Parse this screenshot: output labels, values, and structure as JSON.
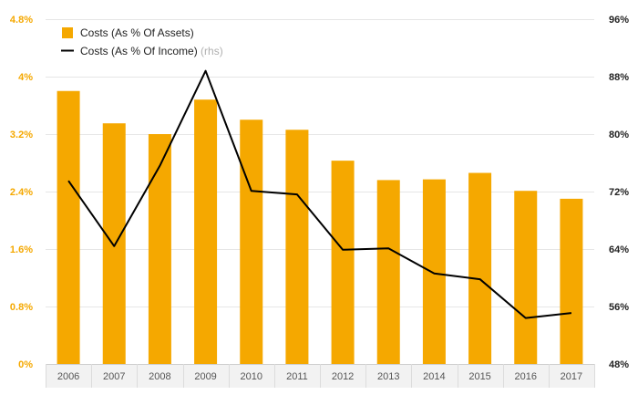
{
  "chart_data": {
    "type": "bar+line",
    "categories": [
      "2006",
      "2007",
      "2008",
      "2009",
      "2010",
      "2011",
      "2012",
      "2013",
      "2014",
      "2015",
      "2016",
      "2017"
    ],
    "series": [
      {
        "name": "Costs (As % Of Assets)",
        "type": "bar",
        "axis": "left",
        "color": "#f5a800",
        "values": [
          3.8,
          3.35,
          3.2,
          3.68,
          3.4,
          3.26,
          2.83,
          2.56,
          2.57,
          2.66,
          2.41,
          2.3
        ]
      },
      {
        "name": "Costs (As % Of Income)",
        "type": "line",
        "axis": "right",
        "color": "#000000",
        "values": [
          73.5,
          64.4,
          75.6,
          88.8,
          72.1,
          71.6,
          63.9,
          64.1,
          60.6,
          59.8,
          54.4,
          55.1
        ]
      }
    ],
    "y_left": {
      "min": 0,
      "max": 4.8,
      "ticks": [
        0,
        0.8,
        1.6,
        2.4,
        3.2,
        4.0,
        4.8
      ],
      "tick_labels": [
        "0%",
        "0.8%",
        "1.6%",
        "2.4%",
        "3.2%",
        "4%",
        "4.8%"
      ],
      "color": "#f5a800"
    },
    "y_right": {
      "min": 48,
      "max": 96,
      "ticks": [
        48,
        56,
        64,
        72,
        80,
        88,
        96
      ],
      "tick_labels": [
        "48%",
        "56%",
        "64%",
        "72%",
        "80%",
        "88%",
        "96%"
      ]
    },
    "legend": {
      "position": "top-left",
      "items": [
        {
          "label": "Costs (As % Of Assets)",
          "note": ""
        },
        {
          "label": "Costs (As % Of Income)",
          "note": "(rhs)"
        }
      ]
    },
    "grid": true
  }
}
